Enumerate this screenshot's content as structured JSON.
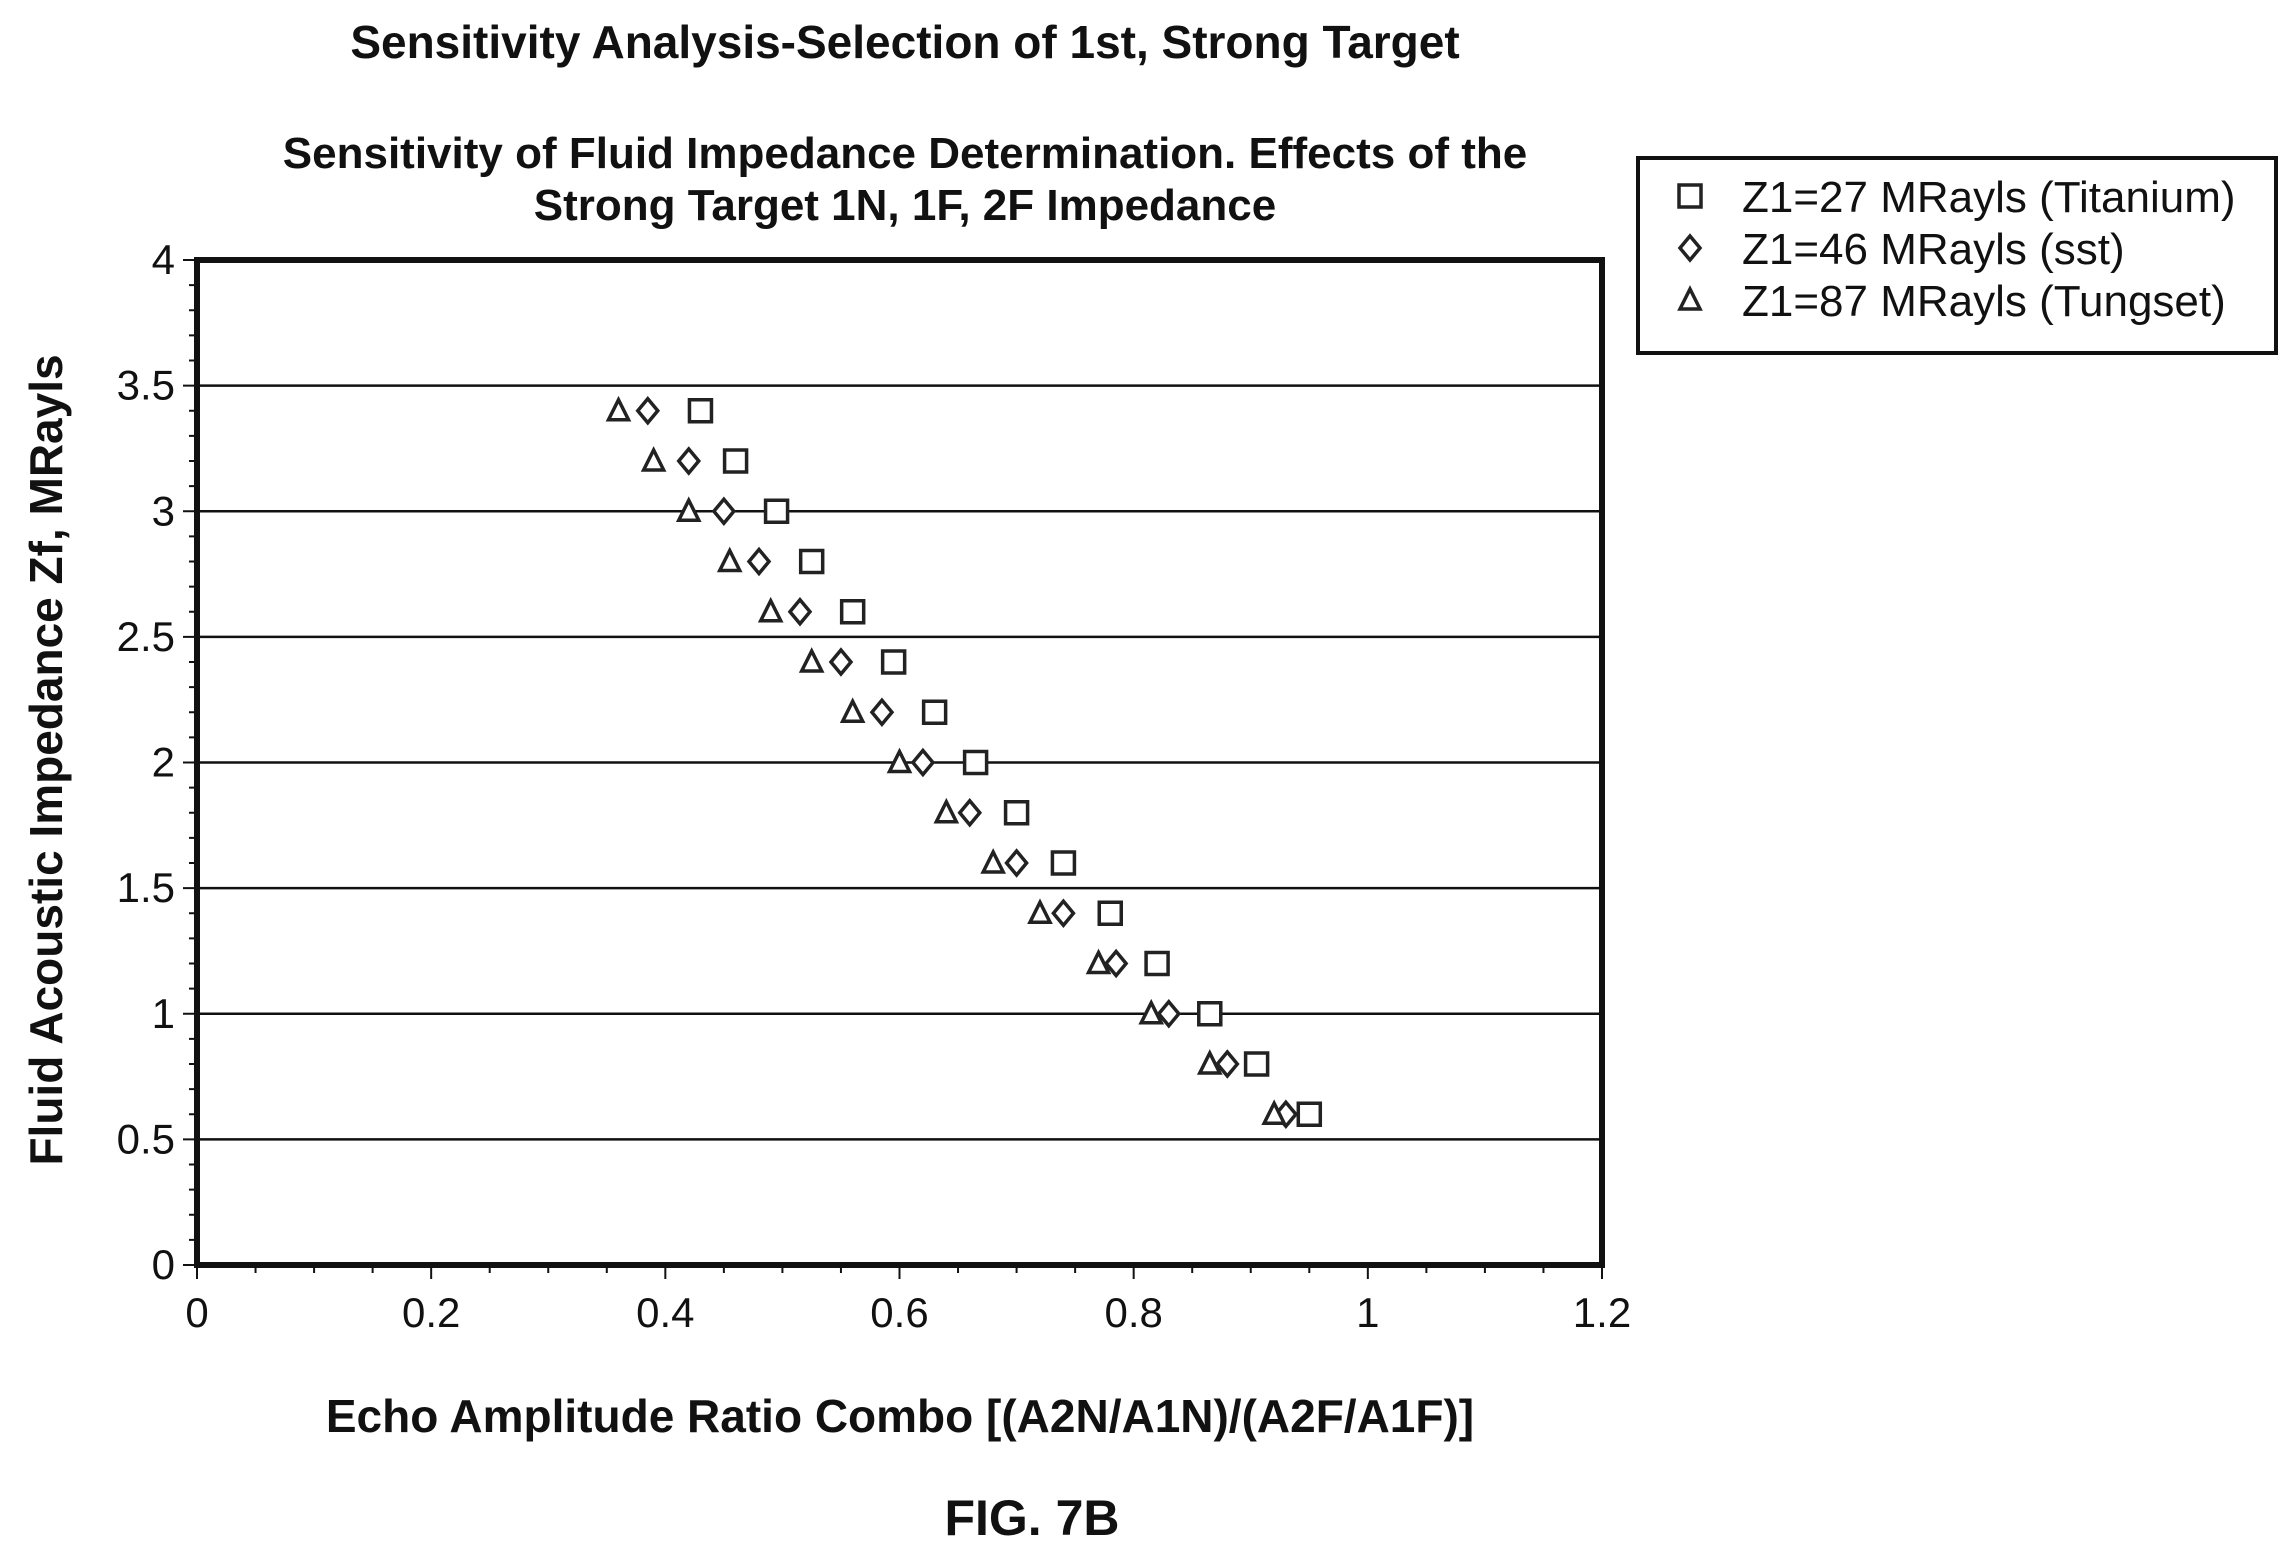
{
  "page": {
    "figure_label": "FIG. 7B"
  },
  "chart_data": {
    "type": "scatter",
    "title": "Sensitivity Analysis-Selection of 1st, Strong Target",
    "subtitle_lines": [
      "Sensitivity of Fluid Impedance Determination. Effects of the",
      "Strong Target 1N, 1F, 2F Impedance"
    ],
    "xlabel": "Echo Amplitude Ratio Combo [(A2N/A1N)/(A2F/A1F)]",
    "ylabel": "Fluid Acoustic Impedance Zf, MRayls",
    "xlim": [
      0,
      1.2
    ],
    "ylim": [
      0,
      4
    ],
    "x_ticks": [
      "0",
      "0.2",
      "0.4",
      "0.6",
      "0.8",
      "1",
      "1.2"
    ],
    "y_ticks": [
      "0",
      "0.5",
      "1",
      "1.5",
      "2",
      "2.5",
      "3",
      "3.5",
      "4"
    ],
    "grid": "horizontal major lines",
    "legend_position": "top-right outside",
    "series": [
      {
        "name": "Z1=27 MRayls (Titanium)",
        "marker": "square",
        "color": "#222222",
        "x": [
          0.43,
          0.46,
          0.495,
          0.525,
          0.56,
          0.595,
          0.63,
          0.665,
          0.7,
          0.74,
          0.78,
          0.82,
          0.865,
          0.905,
          0.95
        ],
        "y": [
          3.4,
          3.2,
          3.0,
          2.8,
          2.6,
          2.4,
          2.2,
          2.0,
          1.8,
          1.6,
          1.4,
          1.2,
          1.0,
          0.8,
          0.6
        ]
      },
      {
        "name": "Z1=46 MRayls (sst)",
        "marker": "diamond",
        "color": "#222222",
        "x": [
          0.385,
          0.42,
          0.45,
          0.48,
          0.515,
          0.55,
          0.585,
          0.62,
          0.66,
          0.7,
          0.74,
          0.785,
          0.83,
          0.88,
          0.93
        ],
        "y": [
          3.4,
          3.2,
          3.0,
          2.8,
          2.6,
          2.4,
          2.2,
          2.0,
          1.8,
          1.6,
          1.4,
          1.2,
          1.0,
          0.8,
          0.6
        ]
      },
      {
        "name": "Z1=87 MRayls (Tungset)",
        "marker": "triangle",
        "color": "#222222",
        "x": [
          0.36,
          0.39,
          0.42,
          0.455,
          0.49,
          0.525,
          0.56,
          0.6,
          0.64,
          0.68,
          0.72,
          0.77,
          0.815,
          0.865,
          0.92
        ],
        "y": [
          3.4,
          3.2,
          3.0,
          2.8,
          2.6,
          2.4,
          2.2,
          2.0,
          1.8,
          1.6,
          1.4,
          1.2,
          1.0,
          0.8,
          0.6
        ]
      }
    ]
  }
}
